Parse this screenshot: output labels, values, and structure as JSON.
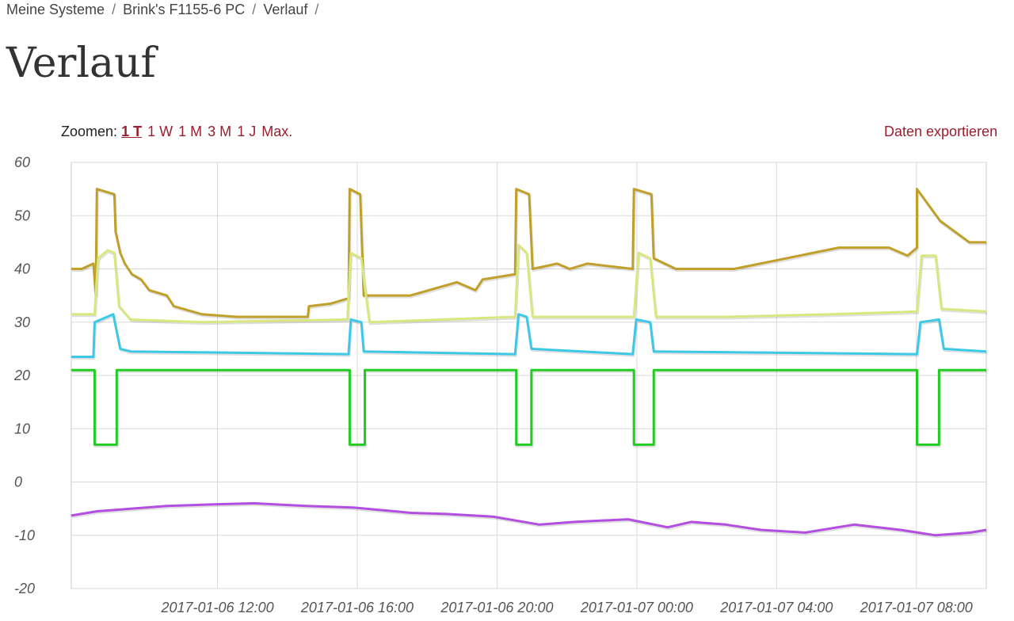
{
  "breadcrumb": {
    "items": [
      "Meine Systeme",
      "Brink's F1155-6 PC",
      "Verlauf"
    ],
    "separator": "/"
  },
  "page": {
    "title": "Verlauf"
  },
  "zoom": {
    "label": "Zoomen:",
    "options": [
      "1 T",
      "1 W",
      "1 M",
      "3 M",
      "1 J",
      "Max."
    ],
    "active": "1 T"
  },
  "export": {
    "label": "Daten exportieren"
  },
  "chart_data": {
    "type": "line",
    "title": "",
    "xlabel": "",
    "ylabel": "",
    "ylim": [
      -20,
      60
    ],
    "yticks": [
      60,
      50,
      40,
      30,
      20,
      10,
      0,
      -10,
      -20
    ],
    "xlim": [
      "2017-01-06 07:49",
      "2017-01-07 10:00"
    ],
    "xticks": [
      "2017-01-06 12:00",
      "2017-01-06 16:00",
      "2017-01-06 20:00",
      "2017-01-07 00:00",
      "2017-01-07 04:00",
      "2017-01-07 08:00"
    ],
    "grid": true,
    "legend": "none",
    "series": [
      {
        "color": "#c0a02a",
        "points": [
          [
            "2017-01-06 07:49",
            40
          ],
          [
            "2017-01-06 08:07",
            40
          ],
          [
            "2017-01-06 08:27",
            41
          ],
          [
            "2017-01-06 08:31",
            35
          ],
          [
            "2017-01-06 08:33",
            55
          ],
          [
            "2017-01-06 09:03",
            54
          ],
          [
            "2017-01-06 09:05",
            47
          ],
          [
            "2017-01-06 09:13",
            43
          ],
          [
            "2017-01-06 09:21",
            41
          ],
          [
            "2017-01-06 09:33",
            39
          ],
          [
            "2017-01-06 09:49",
            38
          ],
          [
            "2017-01-06 10:03",
            36
          ],
          [
            "2017-01-06 10:33",
            35
          ],
          [
            "2017-01-06 10:45",
            33
          ],
          [
            "2017-01-06 11:33",
            31.5
          ],
          [
            "2017-01-06 12:33",
            31
          ],
          [
            "2017-01-06 14:35",
            31
          ],
          [
            "2017-01-06 14:37",
            33
          ],
          [
            "2017-01-06 15:15",
            33.5
          ],
          [
            "2017-01-06 15:45",
            34.5
          ],
          [
            "2017-01-06 15:47",
            55
          ],
          [
            "2017-01-06 16:05",
            54
          ],
          [
            "2017-01-06 16:11",
            35
          ],
          [
            "2017-01-06 16:31",
            35
          ],
          [
            "2017-01-06 17:31",
            35
          ],
          [
            "2017-01-06 18:51",
            37.5
          ],
          [
            "2017-01-06 19:23",
            36
          ],
          [
            "2017-01-06 19:35",
            38
          ],
          [
            "2017-01-06 20:31",
            39
          ],
          [
            "2017-01-06 20:33",
            55
          ],
          [
            "2017-01-06 20:55",
            54
          ],
          [
            "2017-01-06 21:01",
            40
          ],
          [
            "2017-01-06 21:43",
            41
          ],
          [
            "2017-01-06 22:05",
            40
          ],
          [
            "2017-01-06 22:35",
            41
          ],
          [
            "2017-01-06 23:53",
            40
          ],
          [
            "2017-01-06 23:55",
            55
          ],
          [
            "2017-01-07 00:25",
            54
          ],
          [
            "2017-01-07 00:29",
            42
          ],
          [
            "2017-01-07 01:07",
            40
          ],
          [
            "2017-01-07 02:47",
            40
          ],
          [
            "2017-01-07 05:47",
            44
          ],
          [
            "2017-01-07 07:13",
            44
          ],
          [
            "2017-01-07 07:45",
            42.5
          ],
          [
            "2017-01-07 08:01",
            44
          ],
          [
            "2017-01-07 08:01",
            55
          ],
          [
            "2017-01-07 08:41",
            49
          ],
          [
            "2017-01-07 09:31",
            45
          ],
          [
            "2017-01-07 10:00",
            45
          ]
        ]
      },
      {
        "color": "#d8e880",
        "points": [
          [
            "2017-01-06 07:49",
            31.5
          ],
          [
            "2017-01-06 08:29",
            31.5
          ],
          [
            "2017-01-06 08:35",
            42
          ],
          [
            "2017-01-06 08:51",
            43.5
          ],
          [
            "2017-01-06 09:03",
            43
          ],
          [
            "2017-01-06 09:11",
            33
          ],
          [
            "2017-01-06 09:31",
            30.5
          ],
          [
            "2017-01-06 11:33",
            30
          ],
          [
            "2017-01-06 15:43",
            30.5
          ],
          [
            "2017-01-06 15:49",
            43
          ],
          [
            "2017-01-06 16:07",
            42
          ],
          [
            "2017-01-06 16:21",
            30
          ],
          [
            "2017-01-06 20:31",
            31
          ],
          [
            "2017-01-06 20:37",
            44.5
          ],
          [
            "2017-01-06 20:51",
            43
          ],
          [
            "2017-01-06 21:01",
            31
          ],
          [
            "2017-01-06 23:55",
            31
          ],
          [
            "2017-01-07 00:03",
            43
          ],
          [
            "2017-01-07 00:23",
            42
          ],
          [
            "2017-01-07 00:33",
            31
          ],
          [
            "2017-01-07 02:33",
            31
          ],
          [
            "2017-01-07 05:33",
            31.5
          ],
          [
            "2017-01-07 08:01",
            32
          ],
          [
            "2017-01-07 08:09",
            42.5
          ],
          [
            "2017-01-07 08:33",
            42.5
          ],
          [
            "2017-01-07 08:43",
            32.5
          ],
          [
            "2017-01-07 10:00",
            32
          ]
        ]
      },
      {
        "color": "#3cc8e6",
        "points": [
          [
            "2017-01-06 07:49",
            23.5
          ],
          [
            "2017-01-06 08:27",
            23.5
          ],
          [
            "2017-01-06 08:29",
            30
          ],
          [
            "2017-01-06 09:01",
            31.5
          ],
          [
            "2017-01-06 09:13",
            25
          ],
          [
            "2017-01-06 09:31",
            24.5
          ],
          [
            "2017-01-06 15:45",
            24
          ],
          [
            "2017-01-06 15:49",
            30.5
          ],
          [
            "2017-01-06 16:07",
            30
          ],
          [
            "2017-01-06 16:11",
            24.5
          ],
          [
            "2017-01-06 20:31",
            24
          ],
          [
            "2017-01-06 20:37",
            31.5
          ],
          [
            "2017-01-06 20:51",
            31
          ],
          [
            "2017-01-06 20:59",
            25
          ],
          [
            "2017-01-06 23:53",
            24
          ],
          [
            "2017-01-06 23:59",
            30.5
          ],
          [
            "2017-01-07 00:23",
            30
          ],
          [
            "2017-01-07 00:29",
            24.5
          ],
          [
            "2017-01-07 08:01",
            24
          ],
          [
            "2017-01-07 08:07",
            30
          ],
          [
            "2017-01-07 08:39",
            30.5
          ],
          [
            "2017-01-07 08:47",
            25
          ],
          [
            "2017-01-07 10:00",
            24.5
          ]
        ]
      },
      {
        "color": "#22cc22",
        "points": [
          [
            "2017-01-06 07:49",
            21
          ],
          [
            "2017-01-06 08:29",
            21
          ],
          [
            "2017-01-06 08:29",
            7
          ],
          [
            "2017-01-06 09:07",
            7
          ],
          [
            "2017-01-06 09:07",
            21
          ],
          [
            "2017-01-06 15:47",
            21
          ],
          [
            "2017-01-06 15:47",
            7
          ],
          [
            "2017-01-06 16:13",
            7
          ],
          [
            "2017-01-06 16:13",
            21
          ],
          [
            "2017-01-06 20:33",
            21
          ],
          [
            "2017-01-06 20:33",
            7
          ],
          [
            "2017-01-06 20:59",
            7
          ],
          [
            "2017-01-06 20:59",
            21
          ],
          [
            "2017-01-06 23:55",
            21
          ],
          [
            "2017-01-06 23:55",
            7
          ],
          [
            "2017-01-07 00:29",
            7
          ],
          [
            "2017-01-07 00:29",
            21
          ],
          [
            "2017-01-07 08:01",
            21
          ],
          [
            "2017-01-07 08:01",
            7
          ],
          [
            "2017-01-07 08:39",
            7
          ],
          [
            "2017-01-07 08:39",
            21
          ],
          [
            "2017-01-07 10:00",
            21
          ]
        ]
      },
      {
        "color": "#b44ee0",
        "points": [
          [
            "2017-01-06 07:49",
            -6.3
          ],
          [
            "2017-01-06 08:33",
            -5.5
          ],
          [
            "2017-01-06 09:33",
            -5
          ],
          [
            "2017-01-06 10:33",
            -4.5
          ],
          [
            "2017-01-06 11:53",
            -4.2
          ],
          [
            "2017-01-06 13:03",
            -4
          ],
          [
            "2017-01-06 14:33",
            -4.5
          ],
          [
            "2017-01-06 15:53",
            -4.8
          ],
          [
            "2017-01-06 17:33",
            -5.8
          ],
          [
            "2017-01-06 18:33",
            -6
          ],
          [
            "2017-01-06 19:53",
            -6.5
          ],
          [
            "2017-01-06 21:13",
            -8
          ],
          [
            "2017-01-06 22:13",
            -7.5
          ],
          [
            "2017-01-06 23:45",
            -7
          ],
          [
            "2017-01-07 00:53",
            -8.5
          ],
          [
            "2017-01-07 01:33",
            -7.5
          ],
          [
            "2017-01-07 02:33",
            -8
          ],
          [
            "2017-01-07 03:33",
            -9
          ],
          [
            "2017-01-07 04:49",
            -9.5
          ],
          [
            "2017-01-07 06:13",
            -8
          ],
          [
            "2017-01-07 07:33",
            -9
          ],
          [
            "2017-01-07 08:33",
            -10
          ],
          [
            "2017-01-07 09:33",
            -9.5
          ],
          [
            "2017-01-07 10:00",
            -9
          ]
        ]
      }
    ]
  }
}
